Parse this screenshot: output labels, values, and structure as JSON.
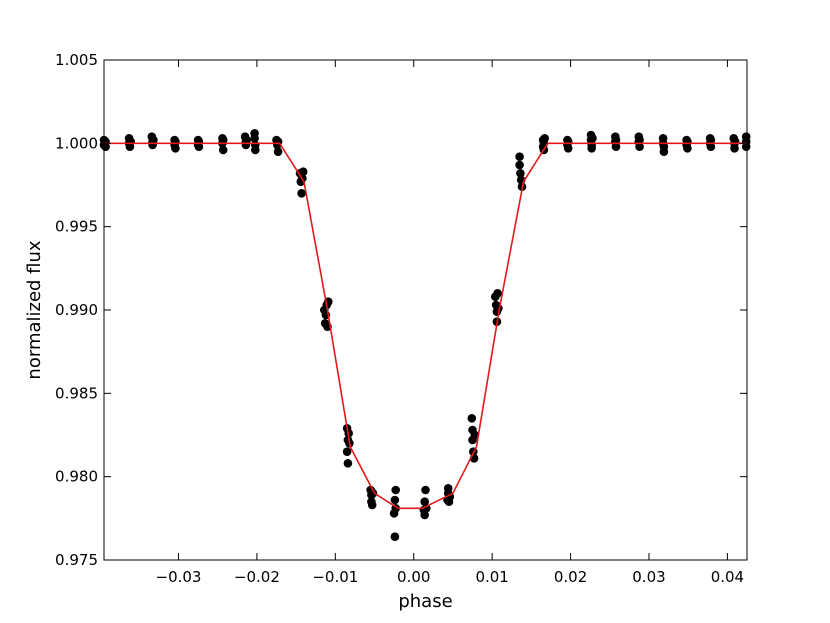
{
  "chart_data": {
    "type": "scatter",
    "title": "",
    "xlabel": "phase",
    "ylabel": "normalized flux",
    "xlim": [
      -0.0395,
      0.0425
    ],
    "ylim": [
      0.975,
      1.005
    ],
    "xticks": [
      -0.03,
      -0.02,
      -0.01,
      0.0,
      0.01,
      0.02,
      0.03,
      0.04
    ],
    "xtick_labels": [
      "−0.03",
      "−0.02",
      "−0.01",
      "0.00",
      "0.01",
      "0.02",
      "0.03",
      "0.04"
    ],
    "yticks": [
      0.975,
      0.98,
      0.985,
      0.99,
      0.995,
      1.0,
      1.005
    ],
    "ytick_labels": [
      "0.975",
      "0.980",
      "0.985",
      "0.990",
      "0.995",
      "1.000",
      "1.005"
    ],
    "grid": false,
    "colors": {
      "points": "#000000",
      "model": "#e31a1c"
    },
    "series": [
      {
        "kind": "points",
        "points": [
          [
            -0.0395,
            1.0002
          ],
          [
            -0.0395,
            0.9999
          ],
          [
            -0.0393,
            1.0001
          ],
          [
            -0.0393,
            0.9998
          ],
          [
            -0.0363,
            1.0003
          ],
          [
            -0.0363,
            1.0
          ],
          [
            -0.0362,
            0.9998
          ],
          [
            -0.0361,
            1.0001
          ],
          [
            -0.0334,
            1.0004
          ],
          [
            -0.0333,
            1.0001
          ],
          [
            -0.0333,
            0.9999
          ],
          [
            -0.0332,
            1.0002
          ],
          [
            -0.0305,
            1.0002
          ],
          [
            -0.0305,
            0.9999
          ],
          [
            -0.0304,
            1.0001
          ],
          [
            -0.0304,
            0.9997
          ],
          [
            -0.0275,
            1.0002
          ],
          [
            -0.0275,
            0.9999
          ],
          [
            -0.0274,
            1.0001
          ],
          [
            -0.0274,
            0.9998
          ],
          [
            -0.0244,
            1.0003
          ],
          [
            -0.0244,
            1.0
          ],
          [
            -0.0243,
            0.9996
          ],
          [
            -0.0243,
            1.0002
          ],
          [
            -0.0215,
            1.0004
          ],
          [
            -0.0214,
            1.0001
          ],
          [
            -0.0214,
            0.9999
          ],
          [
            -0.0213,
            1.0002
          ],
          [
            -0.0203,
            1.0006
          ],
          [
            -0.0203,
            1.0003
          ],
          [
            -0.0202,
            0.9999
          ],
          [
            -0.0202,
            0.9996
          ],
          [
            -0.0175,
            1.0002
          ],
          [
            -0.0174,
            0.9999
          ],
          [
            -0.0173,
            0.9995
          ],
          [
            -0.0173,
            1.0001
          ],
          [
            -0.0145,
            0.9982
          ],
          [
            -0.0144,
            0.9977
          ],
          [
            -0.0143,
            0.997
          ],
          [
            -0.0142,
            0.9979
          ],
          [
            -0.0141,
            0.9983
          ],
          [
            -0.0114,
            0.99
          ],
          [
            -0.0113,
            0.9892
          ],
          [
            -0.0112,
            0.9897
          ],
          [
            -0.0111,
            0.9903
          ],
          [
            -0.011,
            0.989
          ],
          [
            -0.0109,
            0.9905
          ],
          [
            -0.0085,
            0.9829
          ],
          [
            -0.0085,
            0.9815
          ],
          [
            -0.0084,
            0.9822
          ],
          [
            -0.0084,
            0.9808
          ],
          [
            -0.0083,
            0.9826
          ],
          [
            -0.0082,
            0.982
          ],
          [
            -0.0055,
            0.9792
          ],
          [
            -0.0054,
            0.9785
          ],
          [
            -0.0054,
            0.9789
          ],
          [
            -0.0053,
            0.9783
          ],
          [
            -0.0052,
            0.979
          ],
          [
            -0.0025,
            0.9778
          ],
          [
            -0.0024,
            0.9786
          ],
          [
            -0.0024,
            0.9764
          ],
          [
            -0.0023,
            0.9792
          ],
          [
            -0.0023,
            0.9781
          ],
          [
            0.0013,
            0.978
          ],
          [
            0.0014,
            0.9785
          ],
          [
            0.0014,
            0.9777
          ],
          [
            0.0015,
            0.9792
          ],
          [
            0.0016,
            0.9781
          ],
          [
            0.0043,
            0.9786
          ],
          [
            0.0044,
            0.979
          ],
          [
            0.0044,
            0.9793
          ],
          [
            0.0045,
            0.9785
          ],
          [
            0.0046,
            0.9788
          ],
          [
            0.0074,
            0.9835
          ],
          [
            0.0075,
            0.9828
          ],
          [
            0.0075,
            0.9822
          ],
          [
            0.0076,
            0.9815
          ],
          [
            0.0077,
            0.9811
          ],
          [
            0.0078,
            0.9825
          ],
          [
            0.0104,
            0.9908
          ],
          [
            0.0105,
            0.9903
          ],
          [
            0.0106,
            0.9899
          ],
          [
            0.0106,
            0.9893
          ],
          [
            0.0107,
            0.991
          ],
          [
            0.0108,
            0.9901
          ],
          [
            0.0135,
            0.9992
          ],
          [
            0.0135,
            0.9987
          ],
          [
            0.0136,
            0.9982
          ],
          [
            0.0137,
            0.9978
          ],
          [
            0.0138,
            0.9974
          ],
          [
            0.0165,
            1.0002
          ],
          [
            0.0165,
            0.9998
          ],
          [
            0.0166,
            1.0
          ],
          [
            0.0166,
            0.9996
          ],
          [
            0.0167,
            1.0003
          ],
          [
            0.0196,
            1.0002
          ],
          [
            0.0196,
            0.9999
          ],
          [
            0.0197,
            0.9997
          ],
          [
            0.0197,
            1.0001
          ],
          [
            0.0226,
            1.0005
          ],
          [
            0.0226,
            1.0002
          ],
          [
            0.0227,
            0.9999
          ],
          [
            0.0227,
            0.9997
          ],
          [
            0.0228,
            1.0003
          ],
          [
            0.0257,
            1.0004
          ],
          [
            0.0257,
            1.0001
          ],
          [
            0.0258,
            0.9998
          ],
          [
            0.0258,
            1.0002
          ],
          [
            0.0287,
            1.0004
          ],
          [
            0.0287,
            1.0001
          ],
          [
            0.0288,
            0.9998
          ],
          [
            0.0288,
            1.0002
          ],
          [
            0.0318,
            1.0003
          ],
          [
            0.0318,
            1.0
          ],
          [
            0.0319,
            0.9995
          ],
          [
            0.0319,
            0.9998
          ],
          [
            0.0348,
            1.0002
          ],
          [
            0.0348,
            0.9999
          ],
          [
            0.0349,
            1.0001
          ],
          [
            0.0349,
            0.9997
          ],
          [
            0.0378,
            1.0003
          ],
          [
            0.0378,
            1.0
          ],
          [
            0.0379,
            0.9998
          ],
          [
            0.0379,
            1.0002
          ],
          [
            0.0408,
            1.0003
          ],
          [
            0.0409,
            1.0
          ],
          [
            0.0409,
            0.9997
          ],
          [
            0.041,
            1.0001
          ],
          [
            0.0424,
            1.0004
          ],
          [
            0.0424,
            1.0001
          ],
          [
            0.0424,
            0.9998
          ]
        ]
      },
      {
        "kind": "model",
        "points": [
          [
            -0.0395,
            1.0
          ],
          [
            -0.0171,
            1.0
          ],
          [
            -0.014,
            0.9977
          ],
          [
            -0.011,
            0.99
          ],
          [
            -0.0081,
            0.9818
          ],
          [
            -0.005,
            0.979
          ],
          [
            -0.002,
            0.9781
          ],
          [
            0.0011,
            0.9781
          ],
          [
            0.005,
            0.979
          ],
          [
            0.008,
            0.9818
          ],
          [
            0.0109,
            0.99
          ],
          [
            0.014,
            0.9977
          ],
          [
            0.0171,
            1.0
          ],
          [
            0.0425,
            1.0
          ]
        ]
      }
    ]
  }
}
